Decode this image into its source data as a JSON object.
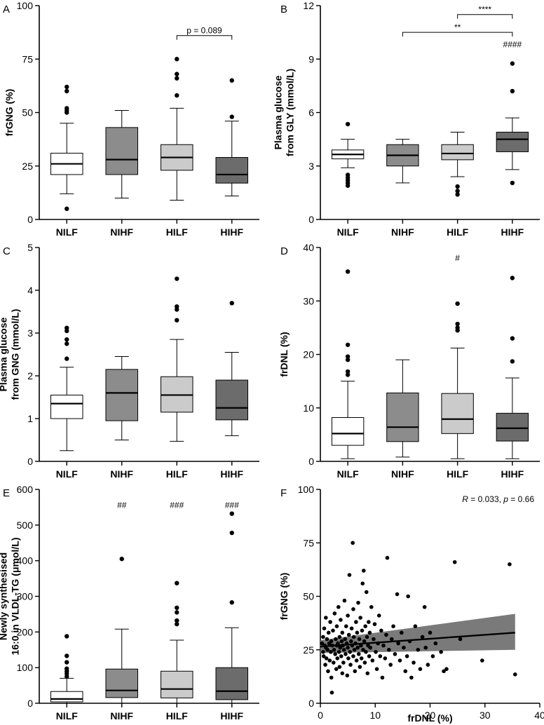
{
  "chart_data": [
    {
      "panel": "A",
      "type": "box",
      "ylabel": [
        "frGNG (%)"
      ],
      "categories": [
        "NILF",
        "NIHF",
        "HILF",
        "HIHF"
      ],
      "ylim": [
        0,
        100
      ],
      "yticks": [
        0,
        25,
        50,
        75,
        100
      ],
      "fills": [
        "#ffffff",
        "#8c8c8c",
        "#cbcbcb",
        "#6c6c6c"
      ],
      "boxes": [
        {
          "q1": 21,
          "median": 26,
          "q3": 31,
          "wlo": 12,
          "whi": 45,
          "outliers": [
            5,
            50,
            51,
            52,
            60,
            62
          ]
        },
        {
          "q1": 21,
          "median": 28,
          "q3": 43,
          "wlo": 10,
          "whi": 51,
          "outliers": []
        },
        {
          "q1": 23,
          "median": 29,
          "q3": 35,
          "wlo": 9,
          "whi": 52,
          "outliers": [
            58,
            66,
            68,
            75
          ]
        },
        {
          "q1": 17,
          "median": 21,
          "q3": 29,
          "wlo": 11,
          "whi": 46,
          "outliers": [
            48,
            65
          ]
        }
      ],
      "brackets": [
        {
          "from": 2,
          "to": 3,
          "y": 86,
          "label": "p = 0.089"
        }
      ],
      "marks": []
    },
    {
      "panel": "B",
      "type": "box",
      "ylabel": [
        "Plasma glucose",
        "from GLY (mmol/L)"
      ],
      "categories": [
        "NILF",
        "NIHF",
        "HILF",
        "HIHF"
      ],
      "ylim": [
        0,
        12
      ],
      "yticks": [
        0,
        3,
        6,
        9,
        12
      ],
      "fills": [
        "#ffffff",
        "#8c8c8c",
        "#cbcbcb",
        "#6c6c6c"
      ],
      "boxes": [
        {
          "q1": 3.4,
          "median": 3.65,
          "q3": 3.9,
          "wlo": 2.9,
          "whi": 4.5,
          "outliers": [
            1.9,
            2.05,
            2.2,
            2.35,
            2.5,
            5.35
          ]
        },
        {
          "q1": 3.0,
          "median": 3.6,
          "q3": 4.2,
          "wlo": 2.05,
          "whi": 4.5,
          "outliers": []
        },
        {
          "q1": 3.35,
          "median": 3.7,
          "q3": 4.2,
          "wlo": 2.4,
          "whi": 4.9,
          "outliers": [
            1.4,
            1.6,
            1.85
          ]
        },
        {
          "q1": 3.8,
          "median": 4.5,
          "q3": 4.9,
          "wlo": 2.8,
          "whi": 5.7,
          "outliers": [
            2.05,
            7.2,
            8.75
          ]
        }
      ],
      "brackets": [
        {
          "from": 2,
          "to": 3,
          "y": 11.5,
          "label": "****"
        },
        {
          "from": 1,
          "to": 3,
          "y": 10.5,
          "label": "**"
        }
      ],
      "marks": [
        {
          "index": 3,
          "y": 9.65,
          "label": "####"
        }
      ]
    },
    {
      "panel": "C",
      "type": "box",
      "ylabel": [
        "Plasma glucose",
        "from GNG (mmol/L)"
      ],
      "categories": [
        "NILF",
        "NIHF",
        "HILF",
        "HIHF"
      ],
      "ylim": [
        0,
        5
      ],
      "yticks": [
        0,
        1,
        2,
        3,
        4,
        5
      ],
      "fills": [
        "#ffffff",
        "#8c8c8c",
        "#cbcbcb",
        "#6c6c6c"
      ],
      "boxes": [
        {
          "q1": 1.0,
          "median": 1.35,
          "q3": 1.55,
          "wlo": 0.25,
          "whi": 2.2,
          "outliers": [
            2.4,
            2.75,
            2.85,
            3.05,
            3.12
          ]
        },
        {
          "q1": 0.95,
          "median": 1.6,
          "q3": 2.15,
          "wlo": 0.5,
          "whi": 2.45,
          "outliers": []
        },
        {
          "q1": 1.15,
          "median": 1.55,
          "q3": 1.98,
          "wlo": 0.47,
          "whi": 2.85,
          "outliers": [
            3.3,
            3.55,
            3.62,
            4.27
          ]
        },
        {
          "q1": 0.97,
          "median": 1.25,
          "q3": 1.9,
          "wlo": 0.6,
          "whi": 2.55,
          "outliers": [
            3.7
          ]
        }
      ],
      "brackets": [],
      "marks": []
    },
    {
      "panel": "D",
      "type": "box",
      "ylabel": [
        "frDNL (%)"
      ],
      "categories": [
        "NILF",
        "NIHF",
        "HILF",
        "HIHF"
      ],
      "ylim": [
        0,
        40
      ],
      "yticks": [
        0,
        10,
        20,
        30,
        40
      ],
      "fills": [
        "#ffffff",
        "#8c8c8c",
        "#cbcbcb",
        "#6c6c6c"
      ],
      "boxes": [
        {
          "q1": 3.0,
          "median": 5.2,
          "q3": 8.2,
          "wlo": 0.5,
          "whi": 15.0,
          "outliers": [
            16.2,
            16.8,
            19.0,
            19.6,
            21.8,
            35.5
          ]
        },
        {
          "q1": 3.7,
          "median": 6.4,
          "q3": 12.8,
          "wlo": 0.8,
          "whi": 19.0,
          "outliers": []
        },
        {
          "q1": 5.2,
          "median": 7.9,
          "q3": 12.7,
          "wlo": 0.5,
          "whi": 21.2,
          "outliers": [
            24.5,
            25.0,
            25.7,
            29.5
          ]
        },
        {
          "q1": 3.8,
          "median": 6.2,
          "q3": 9.0,
          "wlo": 0.5,
          "whi": 15.6,
          "outliers": [
            18.7,
            23.0,
            34.3
          ]
        }
      ],
      "brackets": [],
      "marks": [
        {
          "index": 2,
          "y": 37.5,
          "label": "#"
        }
      ]
    },
    {
      "panel": "E",
      "type": "box",
      "ylabel": [
        "Newly synthesised",
        "16:0 in VLDL-TG (μmol/L)"
      ],
      "categories": [
        "NILF",
        "NIHF",
        "HILF",
        "HIHF"
      ],
      "ylim": [
        0,
        600
      ],
      "yticks": [
        0,
        100,
        200,
        300,
        400,
        500,
        600
      ],
      "fills": [
        "#ffffff",
        "#8c8c8c",
        "#cbcbcb",
        "#6c6c6c"
      ],
      "boxes": [
        {
          "q1": 4,
          "median": 12,
          "q3": 33,
          "wlo": 0,
          "whi": 70,
          "outliers": [
            75,
            83,
            90,
            97,
            115,
            133,
            188
          ]
        },
        {
          "q1": 16,
          "median": 36,
          "q3": 96,
          "wlo": 0,
          "whi": 208,
          "outliers": [
            405
          ]
        },
        {
          "q1": 15,
          "median": 40,
          "q3": 90,
          "wlo": 0,
          "whi": 177,
          "outliers": [
            222,
            232,
            255,
            268,
            337
          ]
        },
        {
          "q1": 10,
          "median": 34,
          "q3": 100,
          "wlo": 0,
          "whi": 212,
          "outliers": [
            283,
            478,
            532
          ]
        }
      ],
      "brackets": [],
      "marks": [
        {
          "index": 1,
          "y": 548,
          "label": "##"
        },
        {
          "index": 2,
          "y": 548,
          "label": "###"
        },
        {
          "index": 3,
          "y": 548,
          "label": "###"
        }
      ]
    },
    {
      "panel": "F",
      "type": "scatter",
      "xlabel": "frDNL (%)",
      "ylabel": "frGNG (%)",
      "xlim": [
        0,
        40
      ],
      "xticks": [
        0,
        10,
        20,
        30,
        40
      ],
      "ylim": [
        0,
        100
      ],
      "yticks": [
        0,
        25,
        50,
        75,
        100
      ],
      "annotation": {
        "R_label": "R",
        "R_text": " = 0.033, ",
        "p_label": "p",
        "p_text": " = 0.66"
      },
      "regression": {
        "x0": 0,
        "y0": 26.5,
        "x1": 35.5,
        "y1": 33.0,
        "ci_lo_end": 25.0,
        "ci_hi_end": 41.8,
        "ci_lo_start": 23.5,
        "ci_hi_start": 29.5
      },
      "points": [
        [
          0.3,
          28
        ],
        [
          0.5,
          24
        ],
        [
          0.5,
          31
        ],
        [
          0.6,
          22
        ],
        [
          0.7,
          35
        ],
        [
          0.8,
          27
        ],
        [
          0.9,
          18
        ],
        [
          1.0,
          26
        ],
        [
          1.0,
          40
        ],
        [
          1.1,
          21
        ],
        [
          1.2,
          30
        ],
        [
          1.3,
          25
        ],
        [
          1.4,
          15
        ],
        [
          1.5,
          33
        ],
        [
          1.6,
          28
        ],
        [
          1.7,
          20
        ],
        [
          1.8,
          38
        ],
        [
          1.9,
          24
        ],
        [
          2.0,
          12
        ],
        [
          2.0,
          29
        ],
        [
          2.1,
          5
        ],
        [
          2.2,
          27
        ],
        [
          2.3,
          34
        ],
        [
          2.4,
          19
        ],
        [
          2.5,
          25
        ],
        [
          2.6,
          42
        ],
        [
          2.7,
          23
        ],
        [
          2.8,
          30
        ],
        [
          2.9,
          16
        ],
        [
          3.0,
          27
        ],
        [
          3.0,
          36
        ],
        [
          3.1,
          21
        ],
        [
          3.2,
          28
        ],
        [
          3.3,
          45
        ],
        [
          3.4,
          24
        ],
        [
          3.5,
          17
        ],
        [
          3.5,
          31
        ],
        [
          3.6,
          26
        ],
        [
          3.7,
          39
        ],
        [
          3.8,
          22
        ],
        [
          3.9,
          29
        ],
        [
          4.0,
          14
        ],
        [
          4.0,
          33
        ],
        [
          4.1,
          27
        ],
        [
          4.2,
          19
        ],
        [
          4.3,
          25
        ],
        [
          4.4,
          48
        ],
        [
          4.5,
          30
        ],
        [
          4.6,
          23
        ],
        [
          4.7,
          36
        ],
        [
          4.8,
          28
        ],
        [
          4.9,
          13
        ],
        [
          5.0,
          26
        ],
        [
          5.0,
          41
        ],
        [
          5.1,
          21
        ],
        [
          5.2,
          32
        ],
        [
          5.3,
          60
        ],
        [
          5.4,
          24
        ],
        [
          5.5,
          18
        ],
        [
          5.6,
          29
        ],
        [
          5.7,
          35
        ],
        [
          5.8,
          27
        ],
        [
          5.9,
          75
        ],
        [
          6.0,
          22
        ],
        [
          6.0,
          44
        ],
        [
          6.1,
          31
        ],
        [
          6.2,
          25
        ],
        [
          6.3,
          15
        ],
        [
          6.4,
          28
        ],
        [
          6.5,
          38
        ],
        [
          6.6,
          20
        ],
        [
          6.7,
          33
        ],
        [
          6.8,
          26
        ],
        [
          6.9,
          47
        ],
        [
          7.0,
          23
        ],
        [
          7.1,
          30
        ],
        [
          7.2,
          17
        ],
        [
          7.3,
          40
        ],
        [
          7.4,
          27
        ],
        [
          7.5,
          21
        ],
        [
          7.6,
          34
        ],
        [
          7.7,
          56
        ],
        [
          7.8,
          25
        ],
        [
          7.9,
          62
        ],
        [
          8.0,
          29
        ],
        [
          8.1,
          19
        ],
        [
          8.2,
          36
        ],
        [
          8.3,
          24
        ],
        [
          8.4,
          52
        ],
        [
          8.5,
          31
        ],
        [
          8.6,
          14
        ],
        [
          8.7,
          27
        ],
        [
          8.8,
          38
        ],
        [
          8.9,
          22
        ],
        [
          9.0,
          33
        ],
        [
          9.1,
          26
        ],
        [
          9.3,
          45
        ],
        [
          9.5,
          20
        ],
        [
          9.7,
          30
        ],
        [
          9.9,
          37
        ],
        [
          10.1,
          24
        ],
        [
          10.3,
          16
        ],
        [
          10.5,
          28
        ],
        [
          10.7,
          41
        ],
        [
          10.9,
          22
        ],
        [
          11.1,
          34
        ],
        [
          11.3,
          12
        ],
        [
          11.5,
          27
        ],
        [
          11.8,
          21
        ],
        [
          12.0,
          32
        ],
        [
          12.2,
          68
        ],
        [
          12.5,
          25
        ],
        [
          12.8,
          18
        ],
        [
          13.0,
          30
        ],
        [
          13.3,
          36
        ],
        [
          13.6,
          23
        ],
        [
          14.0,
          51
        ],
        [
          14.2,
          28
        ],
        [
          14.5,
          20
        ],
        [
          14.8,
          33
        ],
        [
          15.2,
          26
        ],
        [
          15.5,
          15
        ],
        [
          15.8,
          22
        ],
        [
          16.0,
          50
        ],
        [
          16.3,
          29
        ],
        [
          16.6,
          12
        ],
        [
          17.0,
          19
        ],
        [
          17.3,
          36
        ],
        [
          17.8,
          25
        ],
        [
          18.2,
          16
        ],
        [
          18.6,
          31
        ],
        [
          19.0,
          45
        ],
        [
          19.2,
          26
        ],
        [
          19.6,
          18
        ],
        [
          20.0,
          33
        ],
        [
          20.5,
          22
        ],
        [
          21.0,
          28
        ],
        [
          22.0,
          24
        ],
        [
          22.5,
          15
        ],
        [
          23.0,
          16
        ],
        [
          24.5,
          66
        ],
        [
          25.5,
          30
        ],
        [
          29.5,
          20
        ],
        [
          34.5,
          65
        ],
        [
          35.5,
          13.5
        ]
      ]
    }
  ],
  "panels": {
    "A": {
      "letter": "A"
    },
    "B": {
      "letter": "B"
    },
    "C": {
      "letter": "C"
    },
    "D": {
      "letter": "D"
    },
    "E": {
      "letter": "E"
    },
    "F": {
      "letter": "F"
    }
  }
}
